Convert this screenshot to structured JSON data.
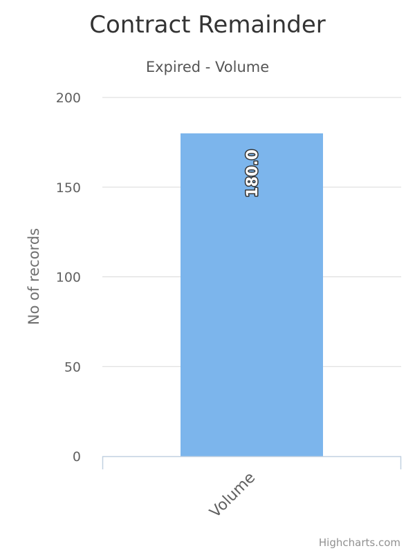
{
  "chart_data": {
    "type": "bar",
    "title": "Contract Remainder",
    "subtitle": "Expired - Volume",
    "categories": [
      "Volume"
    ],
    "series": [
      {
        "values": [
          180.0
        ],
        "color": "#7cb5ec"
      }
    ],
    "data_labels": [
      "180.0"
    ],
    "ylabel": "No of records",
    "xlabel": "",
    "ylim": [
      0,
      200
    ],
    "yticks": [
      0,
      50,
      100,
      150,
      200
    ],
    "grid": true,
    "legend": "none"
  },
  "credits": "Highcharts.com",
  "colors": {
    "bar": "#7cb5ec",
    "grid": "#d8d8d8",
    "axis": "#c0d0e0"
  }
}
